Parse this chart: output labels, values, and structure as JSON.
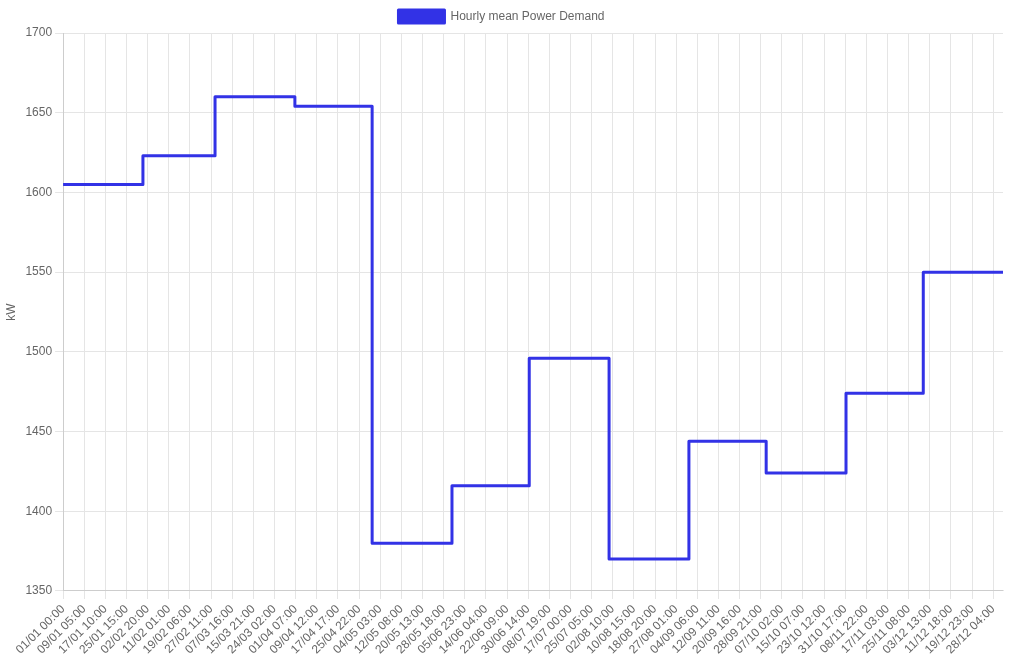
{
  "chart_data": {
    "type": "step",
    "ylabel": "kW",
    "legend": "top",
    "grid": true,
    "marker": "none",
    "line_style": "solid",
    "xlim": [
      "--01-01T00:00",
      "--12-31T23:00"
    ],
    "ylim": [
      1350,
      1700
    ],
    "yticks": [
      1350,
      1400,
      1450,
      1500,
      1550,
      1600,
      1650,
      1700
    ],
    "xticks": [
      {
        "value": "--01-01T00:00",
        "label": "01/01 00:00"
      },
      {
        "value": "--01-09T05:00",
        "label": "09/01 05:00"
      },
      {
        "value": "--01-17T10:00",
        "label": "17/01 10:00"
      },
      {
        "value": "--01-25T15:00",
        "label": "25/01 15:00"
      },
      {
        "value": "--02-02T20:00",
        "label": "02/02 20:00"
      },
      {
        "value": "--02-11T01:00",
        "label": "11/02 01:00"
      },
      {
        "value": "--02-19T06:00",
        "label": "19/02 06:00"
      },
      {
        "value": "--02-27T11:00",
        "label": "27/02 11:00"
      },
      {
        "value": "--03-07T16:00",
        "label": "07/03 16:00"
      },
      {
        "value": "--03-15T21:00",
        "label": "15/03 21:00"
      },
      {
        "value": "--03-24T02:00",
        "label": "24/03 02:00"
      },
      {
        "value": "--04-01T07:00",
        "label": "01/04 07:00"
      },
      {
        "value": "--04-09T12:00",
        "label": "09/04 12:00"
      },
      {
        "value": "--04-17T17:00",
        "label": "17/04 17:00"
      },
      {
        "value": "--04-25T22:00",
        "label": "25/04 22:00"
      },
      {
        "value": "--05-04T03:00",
        "label": "04/05 03:00"
      },
      {
        "value": "--05-12T08:00",
        "label": "12/05 08:00"
      },
      {
        "value": "--05-20T13:00",
        "label": "20/05 13:00"
      },
      {
        "value": "--05-28T18:00",
        "label": "28/05 18:00"
      },
      {
        "value": "--06-05T23:00",
        "label": "05/06 23:00"
      },
      {
        "value": "--06-14T04:00",
        "label": "14/06 04:00"
      },
      {
        "value": "--06-22T09:00",
        "label": "22/06 09:00"
      },
      {
        "value": "--06-30T14:00",
        "label": "30/06 14:00"
      },
      {
        "value": "--07-08T19:00",
        "label": "08/07 19:00"
      },
      {
        "value": "--07-17T00:00",
        "label": "17/07 00:00"
      },
      {
        "value": "--07-25T05:00",
        "label": "25/07 05:00"
      },
      {
        "value": "--08-02T10:00",
        "label": "02/08 10:00"
      },
      {
        "value": "--08-10T15:00",
        "label": "10/08 15:00"
      },
      {
        "value": "--08-18T20:00",
        "label": "18/08 20:00"
      },
      {
        "value": "--08-27T01:00",
        "label": "27/08 01:00"
      },
      {
        "value": "--09-04T06:00",
        "label": "04/09 06:00"
      },
      {
        "value": "--09-12T11:00",
        "label": "12/09 11:00"
      },
      {
        "value": "--09-20T16:00",
        "label": "20/09 16:00"
      },
      {
        "value": "--09-28T21:00",
        "label": "28/09 21:00"
      },
      {
        "value": "--10-07T02:00",
        "label": "07/10 02:00"
      },
      {
        "value": "--10-15T07:00",
        "label": "15/10 07:00"
      },
      {
        "value": "--10-23T12:00",
        "label": "23/10 12:00"
      },
      {
        "value": "--10-31T17:00",
        "label": "31/10 17:00"
      },
      {
        "value": "--11-08T22:00",
        "label": "08/11 22:00"
      },
      {
        "value": "--11-17T03:00",
        "label": "17/11 03:00"
      },
      {
        "value": "--11-25T08:00",
        "label": "25/11 08:00"
      },
      {
        "value": "--12-03T13:00",
        "label": "03/12 13:00"
      },
      {
        "value": "--12-11T18:00",
        "label": "11/12 18:00"
      },
      {
        "value": "--12-19T23:00",
        "label": "19/12 23:00"
      },
      {
        "value": "--12-28T04:00",
        "label": "28/12 04:00"
      }
    ],
    "series": [
      {
        "name": "Hourly mean Power Demand",
        "color": "#3232e6",
        "x": [
          "--01-01T00:00",
          "--02-01T00:00",
          "--03-01T00:00",
          "--04-01T00:00",
          "--05-01T00:00",
          "--06-01T00:00",
          "--07-01T00:00",
          "--08-01T00:00",
          "--09-01T00:00",
          "--10-01T00:00",
          "--11-01T00:00",
          "--12-01T00:00",
          "--12-31T23:00"
        ],
        "values": [
          1605,
          1623,
          1660,
          1654,
          1380,
          1416,
          1496,
          1370,
          1444,
          1424,
          1474,
          1550,
          1550
        ]
      }
    ]
  }
}
